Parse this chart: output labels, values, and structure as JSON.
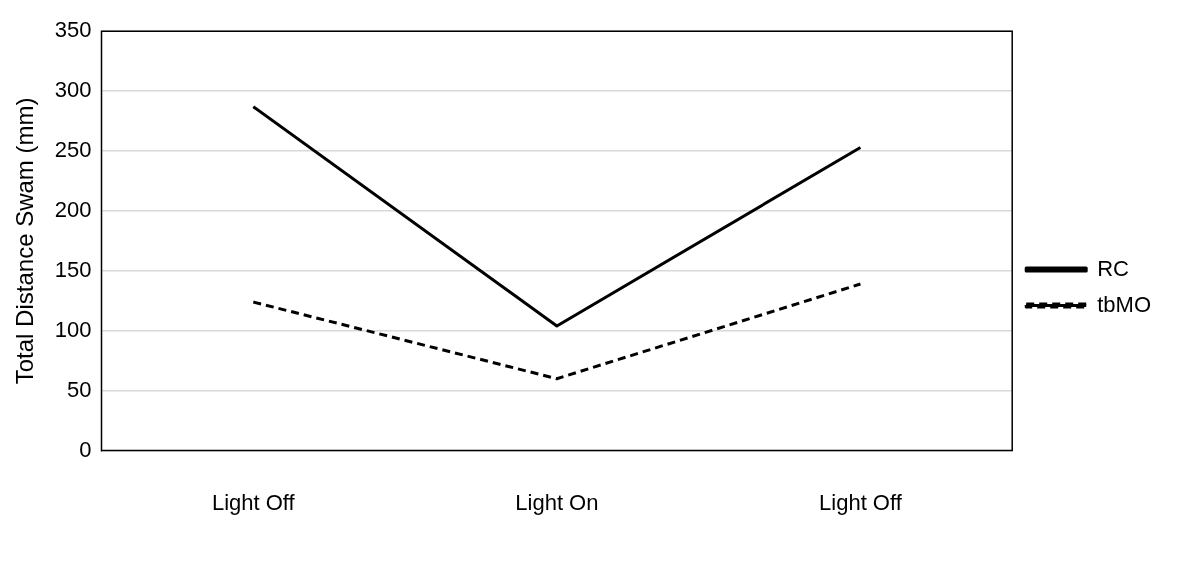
{
  "chart_data": {
    "type": "line",
    "ylabel": "Total Distance Swam (mm)",
    "categories": [
      "Light Off",
      "Light On",
      "Light Off"
    ],
    "series": [
      {
        "name": "RC",
        "color": "#000000",
        "values": [
          287,
          104,
          253
        ],
        "line_style": "solid"
      },
      {
        "name": "tbMO",
        "color": "#000000",
        "values": [
          124,
          60,
          139
        ],
        "line_style": "dashed"
      }
    ],
    "ylim": [
      0,
      350
    ],
    "yticks": [
      0,
      50,
      100,
      150,
      200,
      250,
      300,
      350
    ],
    "grid": "y",
    "legend": "right",
    "marker": "none"
  }
}
